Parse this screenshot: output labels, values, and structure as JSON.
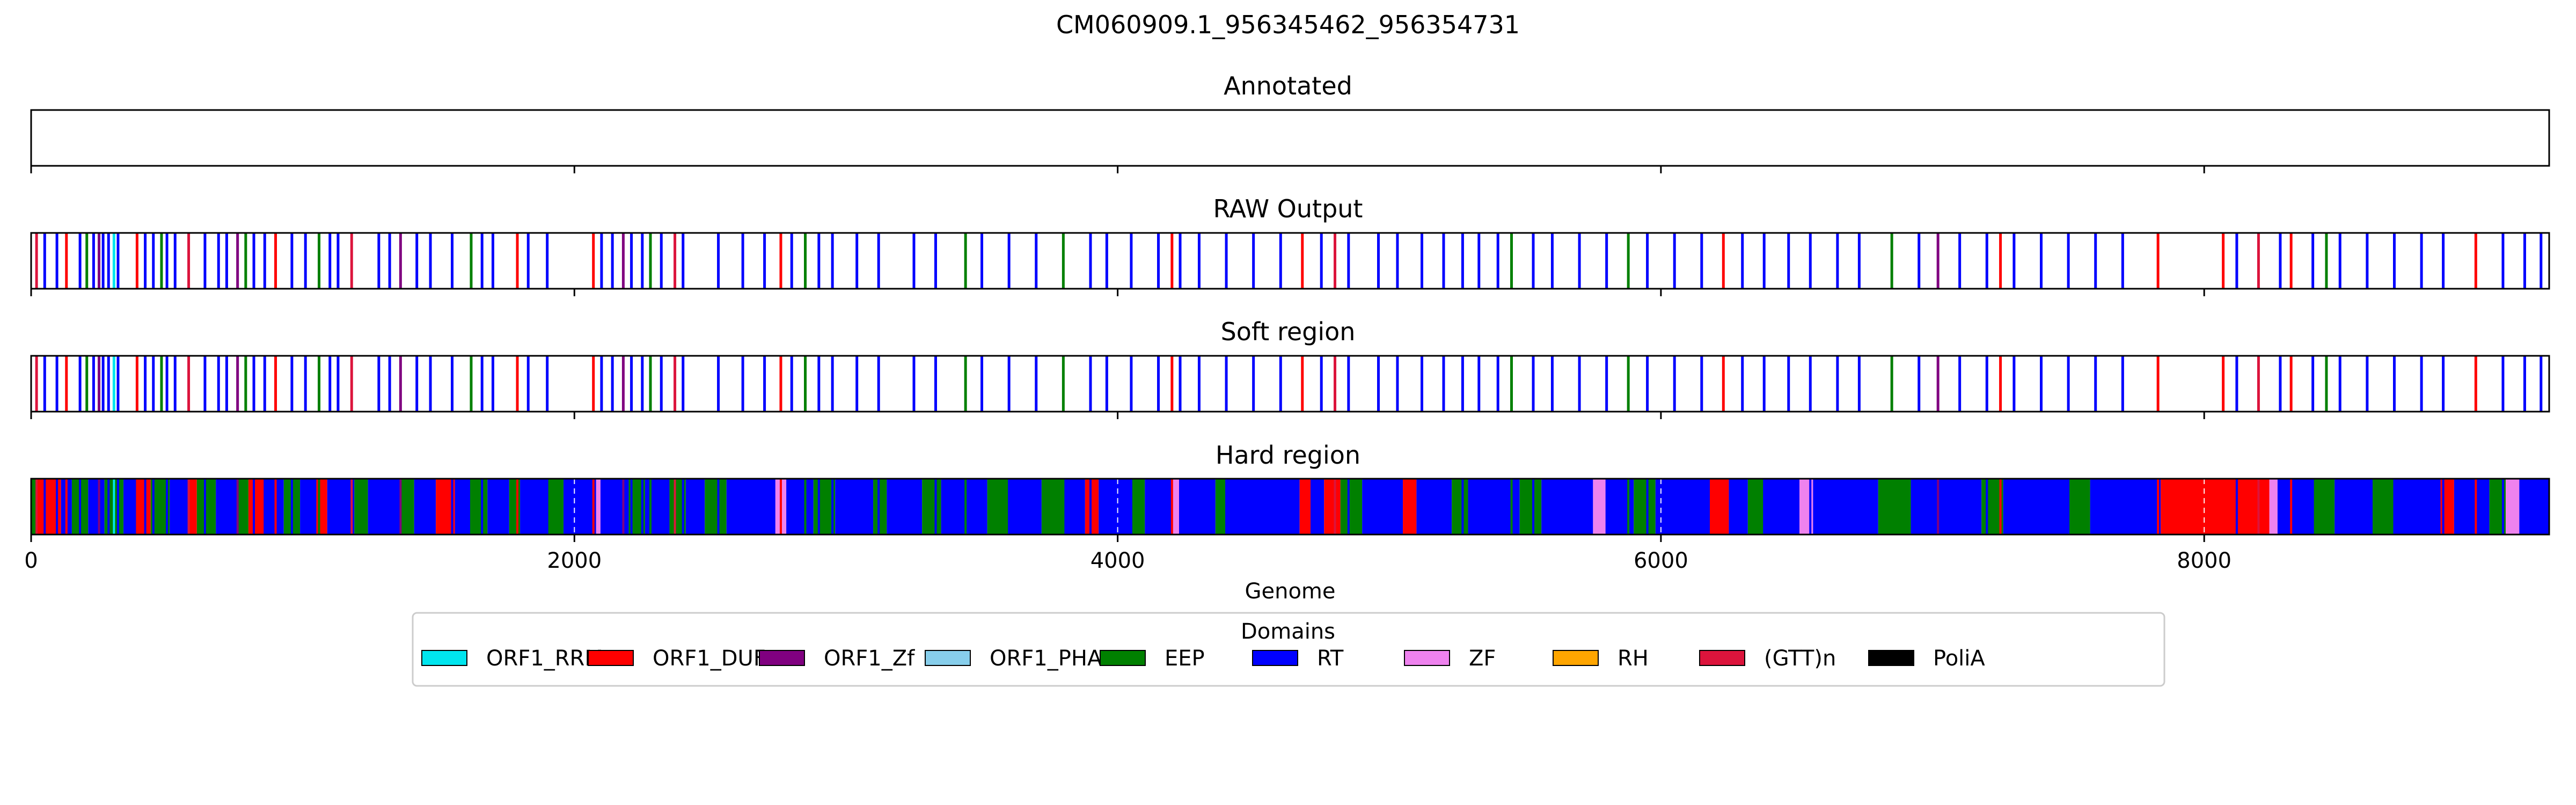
{
  "chart_data": {
    "type": "bar",
    "title": "CM060909.1_956345462_956354731",
    "xlabel": "Genome",
    "xlim": [
      0,
      9270
    ],
    "xticks": [
      0,
      2000,
      4000,
      6000,
      8000
    ],
    "xtick_labels": [
      "0",
      "2000",
      "4000",
      "6000",
      "8000"
    ],
    "grid": "vertical dashed white lines at ticks",
    "panels": [
      {
        "title": "Annotated",
        "mode": "empty"
      },
      {
        "title": "RAW Output",
        "mode": "sparse"
      },
      {
        "title": "Soft region",
        "mode": "sparse"
      },
      {
        "title": "Hard region",
        "mode": "dense"
      }
    ],
    "legend": {
      "title": "Domains",
      "placement": "below plot, center",
      "entries": [
        {
          "label": "ORF1_RRM",
          "color": "#00e5ee"
        },
        {
          "label": "ORF1_DUF",
          "color": "#ff0000"
        },
        {
          "label": "ORF1_Zf",
          "color": "#800080"
        },
        {
          "label": "ORF1_PHA",
          "color": "#87ceeb"
        },
        {
          "label": "EEP",
          "color": "#008000"
        },
        {
          "label": "RT",
          "color": "#0000ff"
        },
        {
          "label": "ZF",
          "color": "#ee82ee"
        },
        {
          "label": "RH",
          "color": "#ffa500"
        },
        {
          "label": "(GTT)n",
          "color": "#dc143c"
        },
        {
          "label": "PoliA",
          "color": "#000000"
        }
      ]
    },
    "sparse_marks": [
      {
        "x": 20,
        "d": "(GTT)n"
      },
      {
        "x": 50,
        "d": "RT"
      },
      {
        "x": 95,
        "d": "RT"
      },
      {
        "x": 130,
        "d": "ORF1_DUF"
      },
      {
        "x": 180,
        "d": "RT"
      },
      {
        "x": 205,
        "d": "EEP"
      },
      {
        "x": 230,
        "d": "RT"
      },
      {
        "x": 250,
        "d": "ORF1_Zf"
      },
      {
        "x": 265,
        "d": "RT"
      },
      {
        "x": 285,
        "d": "RT"
      },
      {
        "x": 305,
        "d": "ORF1_RRM"
      },
      {
        "x": 320,
        "d": "RT"
      },
      {
        "x": 390,
        "d": "ORF1_DUF"
      },
      {
        "x": 420,
        "d": "RT"
      },
      {
        "x": 450,
        "d": "RT"
      },
      {
        "x": 480,
        "d": "EEP"
      },
      {
        "x": 500,
        "d": "RT"
      },
      {
        "x": 530,
        "d": "RT"
      },
      {
        "x": 580,
        "d": "(GTT)n"
      },
      {
        "x": 640,
        "d": "RT"
      },
      {
        "x": 690,
        "d": "RT"
      },
      {
        "x": 720,
        "d": "RT"
      },
      {
        "x": 760,
        "d": "ORF1_Zf"
      },
      {
        "x": 790,
        "d": "EEP"
      },
      {
        "x": 820,
        "d": "RT"
      },
      {
        "x": 860,
        "d": "RT"
      },
      {
        "x": 900,
        "d": "ORF1_DUF"
      },
      {
        "x": 960,
        "d": "RT"
      },
      {
        "x": 1010,
        "d": "RT"
      },
      {
        "x": 1060,
        "d": "EEP"
      },
      {
        "x": 1100,
        "d": "RT"
      },
      {
        "x": 1130,
        "d": "RT"
      },
      {
        "x": 1180,
        "d": "(GTT)n"
      },
      {
        "x": 1280,
        "d": "RT"
      },
      {
        "x": 1320,
        "d": "RT"
      },
      {
        "x": 1360,
        "d": "ORF1_Zf"
      },
      {
        "x": 1420,
        "d": "RT"
      },
      {
        "x": 1470,
        "d": "RT"
      },
      {
        "x": 1550,
        "d": "RT"
      },
      {
        "x": 1620,
        "d": "EEP"
      },
      {
        "x": 1660,
        "d": "RT"
      },
      {
        "x": 1700,
        "d": "RT"
      },
      {
        "x": 1790,
        "d": "ORF1_DUF"
      },
      {
        "x": 1830,
        "d": "RT"
      },
      {
        "x": 1900,
        "d": "RT"
      },
      {
        "x": 2070,
        "d": "ORF1_DUF"
      },
      {
        "x": 2100,
        "d": "RT"
      },
      {
        "x": 2140,
        "d": "RT"
      },
      {
        "x": 2180,
        "d": "ORF1_Zf"
      },
      {
        "x": 2210,
        "d": "RT"
      },
      {
        "x": 2250,
        "d": "RT"
      },
      {
        "x": 2280,
        "d": "EEP"
      },
      {
        "x": 2320,
        "d": "RT"
      },
      {
        "x": 2370,
        "d": "(GTT)n"
      },
      {
        "x": 2400,
        "d": "RT"
      },
      {
        "x": 2530,
        "d": "RT"
      },
      {
        "x": 2620,
        "d": "RT"
      },
      {
        "x": 2700,
        "d": "RT"
      },
      {
        "x": 2760,
        "d": "ORF1_DUF"
      },
      {
        "x": 2800,
        "d": "RT"
      },
      {
        "x": 2850,
        "d": "EEP"
      },
      {
        "x": 2900,
        "d": "RT"
      },
      {
        "x": 2950,
        "d": "RT"
      },
      {
        "x": 3040,
        "d": "RT"
      },
      {
        "x": 3120,
        "d": "RT"
      },
      {
        "x": 3250,
        "d": "RT"
      },
      {
        "x": 3330,
        "d": "RT"
      },
      {
        "x": 3440,
        "d": "EEP"
      },
      {
        "x": 3500,
        "d": "RT"
      },
      {
        "x": 3600,
        "d": "RT"
      },
      {
        "x": 3700,
        "d": "RT"
      },
      {
        "x": 3800,
        "d": "EEP"
      },
      {
        "x": 3900,
        "d": "RT"
      },
      {
        "x": 3960,
        "d": "RT"
      },
      {
        "x": 4050,
        "d": "RT"
      },
      {
        "x": 4150,
        "d": "RT"
      },
      {
        "x": 4200,
        "d": "ORF1_DUF"
      },
      {
        "x": 4230,
        "d": "RT"
      },
      {
        "x": 4300,
        "d": "RT"
      },
      {
        "x": 4400,
        "d": "RT"
      },
      {
        "x": 4500,
        "d": "RT"
      },
      {
        "x": 4600,
        "d": "RT"
      },
      {
        "x": 4680,
        "d": "ORF1_DUF"
      },
      {
        "x": 4750,
        "d": "RT"
      },
      {
        "x": 4800,
        "d": "(GTT)n"
      },
      {
        "x": 4850,
        "d": "RT"
      },
      {
        "x": 4960,
        "d": "RT"
      },
      {
        "x": 5030,
        "d": "RT"
      },
      {
        "x": 5120,
        "d": "RT"
      },
      {
        "x": 5200,
        "d": "RT"
      },
      {
        "x": 5270,
        "d": "RT"
      },
      {
        "x": 5330,
        "d": "RT"
      },
      {
        "x": 5400,
        "d": "RT"
      },
      {
        "x": 5450,
        "d": "EEP"
      },
      {
        "x": 5530,
        "d": "RT"
      },
      {
        "x": 5600,
        "d": "RT"
      },
      {
        "x": 5700,
        "d": "RT"
      },
      {
        "x": 5800,
        "d": "RT"
      },
      {
        "x": 5880,
        "d": "EEP"
      },
      {
        "x": 5950,
        "d": "RT"
      },
      {
        "x": 6050,
        "d": "RT"
      },
      {
        "x": 6150,
        "d": "RT"
      },
      {
        "x": 6230,
        "d": "ORF1_DUF"
      },
      {
        "x": 6300,
        "d": "RT"
      },
      {
        "x": 6380,
        "d": "RT"
      },
      {
        "x": 6470,
        "d": "RT"
      },
      {
        "x": 6550,
        "d": "RT"
      },
      {
        "x": 6650,
        "d": "RT"
      },
      {
        "x": 6730,
        "d": "RT"
      },
      {
        "x": 6850,
        "d": "EEP"
      },
      {
        "x": 6950,
        "d": "RT"
      },
      {
        "x": 7020,
        "d": "ORF1_Zf"
      },
      {
        "x": 7100,
        "d": "RT"
      },
      {
        "x": 7200,
        "d": "RT"
      },
      {
        "x": 7250,
        "d": "ORF1_DUF"
      },
      {
        "x": 7300,
        "d": "RT"
      },
      {
        "x": 7400,
        "d": "RT"
      },
      {
        "x": 7500,
        "d": "RT"
      },
      {
        "x": 7600,
        "d": "RT"
      },
      {
        "x": 7700,
        "d": "RT"
      },
      {
        "x": 7830,
        "d": "ORF1_DUF"
      },
      {
        "x": 8070,
        "d": "ORF1_DUF"
      },
      {
        "x": 8120,
        "d": "RT"
      },
      {
        "x": 8200,
        "d": "(GTT)n"
      },
      {
        "x": 8280,
        "d": "RT"
      },
      {
        "x": 8320,
        "d": "ORF1_DUF"
      },
      {
        "x": 8400,
        "d": "RT"
      },
      {
        "x": 8450,
        "d": "EEP"
      },
      {
        "x": 8500,
        "d": "RT"
      },
      {
        "x": 8600,
        "d": "RT"
      },
      {
        "x": 8700,
        "d": "RT"
      },
      {
        "x": 8800,
        "d": "RT"
      },
      {
        "x": 8880,
        "d": "RT"
      },
      {
        "x": 9000,
        "d": "ORF1_DUF"
      },
      {
        "x": 9100,
        "d": "RT"
      },
      {
        "x": 9180,
        "d": "RT"
      },
      {
        "x": 9240,
        "d": "RT"
      }
    ],
    "dense_segments": [
      {
        "start": 0,
        "end": 20,
        "d": "EEP"
      },
      {
        "start": 20,
        "end": 110,
        "d": "ORF1_DUF"
      },
      {
        "x_note": "",
        "start": 110,
        "end": 150,
        "d": "RT"
      },
      {
        "start": 150,
        "end": 210,
        "d": "EEP"
      },
      {
        "start": 210,
        "end": 270,
        "d": "RT"
      },
      {
        "start": 270,
        "end": 340,
        "d": "EEP"
      },
      {
        "start": 340,
        "end": 390,
        "d": "RT"
      },
      {
        "start": 390,
        "end": 440,
        "d": "ORF1_DUF"
      },
      {
        "start": 440,
        "end": 510,
        "d": "EEP"
      },
      {
        "start": 510,
        "end": 580,
        "d": "RT"
      },
      {
        "start": 580,
        "end": 610,
        "d": "ORF1_DUF"
      },
      {
        "start": 610,
        "end": 680,
        "d": "EEP"
      },
      {
        "start": 680,
        "end": 760,
        "d": "RT"
      },
      {
        "start": 760,
        "end": 800,
        "d": "EEP"
      },
      {
        "start": 800,
        "end": 860,
        "d": "ORF1_DUF"
      },
      {
        "start": 860,
        "end": 930,
        "d": "RT"
      },
      {
        "start": 930,
        "end": 990,
        "d": "EEP"
      },
      {
        "start": 990,
        "end": 1050,
        "d": "RT"
      },
      {
        "start": 1050,
        "end": 1090,
        "d": "ORF1_DUF"
      },
      {
        "start": 1090,
        "end": 1190,
        "d": "RT"
      },
      {
        "start": 1190,
        "end": 1240,
        "d": "EEP"
      },
      {
        "start": 1240,
        "end": 1360,
        "d": "RT"
      },
      {
        "start": 1360,
        "end": 1410,
        "d": "EEP"
      },
      {
        "start": 1410,
        "end": 1490,
        "d": "RT"
      },
      {
        "start": 1490,
        "end": 1560,
        "d": "ORF1_DUF"
      },
      {
        "start": 1560,
        "end": 1620,
        "d": "RT"
      },
      {
        "start": 1620,
        "end": 1680,
        "d": "EEP"
      },
      {
        "start": 1680,
        "end": 1760,
        "d": "RT"
      },
      {
        "start": 1760,
        "end": 1800,
        "d": "EEP"
      },
      {
        "start": 1800,
        "end": 1900,
        "d": "RT"
      },
      {
        "start": 1900,
        "end": 1960,
        "d": "EEP"
      },
      {
        "start": 1960,
        "end": 2080,
        "d": "RT"
      },
      {
        "start": 2080,
        "end": 2100,
        "d": "ZF"
      },
      {
        "start": 2100,
        "end": 2200,
        "d": "RT"
      },
      {
        "start": 2200,
        "end": 2260,
        "d": "EEP"
      },
      {
        "start": 2260,
        "end": 2350,
        "d": "RT"
      },
      {
        "start": 2350,
        "end": 2410,
        "d": "EEP"
      },
      {
        "start": 2410,
        "end": 2480,
        "d": "RT"
      },
      {
        "start": 2480,
        "end": 2560,
        "d": "EEP"
      },
      {
        "start": 2560,
        "end": 2740,
        "d": "RT"
      },
      {
        "start": 2740,
        "end": 2780,
        "d": "ZF"
      },
      {
        "start": 2780,
        "end": 2880,
        "d": "RT"
      },
      {
        "start": 2880,
        "end": 2960,
        "d": "EEP"
      },
      {
        "start": 2960,
        "end": 3100,
        "d": "RT"
      },
      {
        "start": 3100,
        "end": 3150,
        "d": "EEP"
      },
      {
        "start": 3150,
        "end": 3280,
        "d": "RT"
      },
      {
        "start": 3280,
        "end": 3350,
        "d": "EEP"
      },
      {
        "start": 3350,
        "end": 3520,
        "d": "RT"
      },
      {
        "start": 3520,
        "end": 3600,
        "d": "EEP"
      },
      {
        "start": 3600,
        "end": 3720,
        "d": "RT"
      },
      {
        "start": 3720,
        "end": 3800,
        "d": "EEP"
      },
      {
        "start": 3800,
        "end": 3880,
        "d": "RT"
      },
      {
        "start": 3880,
        "end": 3930,
        "d": "ORF1_DUF"
      },
      {
        "start": 3930,
        "end": 4050,
        "d": "RT"
      },
      {
        "start": 4050,
        "end": 4100,
        "d": "EEP"
      },
      {
        "start": 4100,
        "end": 4200,
        "d": "RT"
      },
      {
        "start": 4200,
        "end": 4230,
        "d": "ZF"
      },
      {
        "start": 4230,
        "end": 4360,
        "d": "RT"
      },
      {
        "start": 4360,
        "end": 4400,
        "d": "EEP"
      },
      {
        "start": 4400,
        "end": 4670,
        "d": "RT"
      },
      {
        "start": 4670,
        "end": 4710,
        "d": "ORF1_DUF"
      },
      {
        "start": 4710,
        "end": 4760,
        "d": "RT"
      },
      {
        "start": 4760,
        "end": 4820,
        "d": "ORF1_DUF"
      },
      {
        "start": 4820,
        "end": 4900,
        "d": "EEP"
      },
      {
        "start": 4900,
        "end": 5050,
        "d": "RT"
      },
      {
        "start": 5050,
        "end": 5100,
        "d": "ORF1_DUF"
      },
      {
        "start": 5100,
        "end": 5230,
        "d": "RT"
      },
      {
        "start": 5230,
        "end": 5290,
        "d": "EEP"
      },
      {
        "start": 5290,
        "end": 5480,
        "d": "RT"
      },
      {
        "start": 5480,
        "end": 5560,
        "d": "EEP"
      },
      {
        "start": 5560,
        "end": 5750,
        "d": "RT"
      },
      {
        "start": 5750,
        "end": 5800,
        "d": "ZF"
      },
      {
        "start": 5800,
        "end": 5900,
        "d": "RT"
      },
      {
        "start": 5900,
        "end": 5980,
        "d": "EEP"
      },
      {
        "start": 5980,
        "end": 6180,
        "d": "RT"
      },
      {
        "start": 6180,
        "end": 6250,
        "d": "ORF1_DUF"
      },
      {
        "start": 6250,
        "end": 6320,
        "d": "RT"
      },
      {
        "start": 6320,
        "end": 6380,
        "d": "EEP"
      },
      {
        "start": 6380,
        "end": 6510,
        "d": "RT"
      },
      {
        "start": 6510,
        "end": 6560,
        "d": "ZF"
      },
      {
        "start": 6560,
        "end": 6800,
        "d": "RT"
      },
      {
        "start": 6800,
        "end": 6920,
        "d": "EEP"
      },
      {
        "start": 6920,
        "end": 7180,
        "d": "RT"
      },
      {
        "start": 7180,
        "end": 7260,
        "d": "EEP"
      },
      {
        "start": 7260,
        "end": 7500,
        "d": "RT"
      },
      {
        "start": 7500,
        "end": 7580,
        "d": "EEP"
      },
      {
        "start": 7580,
        "end": 7840,
        "d": "RT"
      },
      {
        "start": 7840,
        "end": 8240,
        "d": "ORF1_DUF"
      },
      {
        "start": 8240,
        "end": 8270,
        "d": "ZF"
      },
      {
        "start": 8270,
        "end": 8400,
        "d": "RT"
      },
      {
        "start": 8400,
        "end": 8480,
        "d": "EEP"
      },
      {
        "start": 8480,
        "end": 8620,
        "d": "RT"
      },
      {
        "start": 8620,
        "end": 8700,
        "d": "EEP"
      },
      {
        "start": 8700,
        "end": 8870,
        "d": "RT"
      },
      {
        "start": 8870,
        "end": 8920,
        "d": "ORF1_DUF"
      },
      {
        "start": 8920,
        "end": 9050,
        "d": "RT"
      },
      {
        "start": 9050,
        "end": 9110,
        "d": "EEP"
      },
      {
        "start": 9110,
        "end": 9160,
        "d": "ZF"
      },
      {
        "start": 9160,
        "end": 9270,
        "d": "RT"
      }
    ]
  }
}
